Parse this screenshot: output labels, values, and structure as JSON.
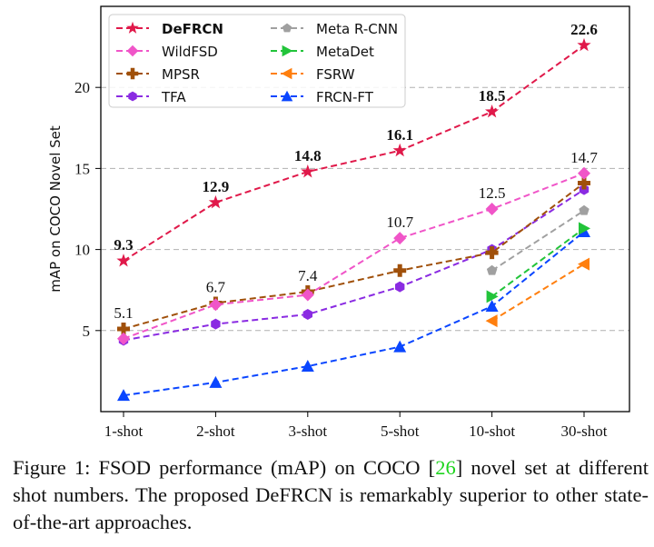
{
  "chart_data": {
    "type": "line",
    "ylabel": "mAP on COCO Novel Set",
    "xlabel": "",
    "categories": [
      "1-shot",
      "2-shot",
      "3-shot",
      "5-shot",
      "10-shot",
      "30-shot"
    ],
    "yticks": [
      5,
      10,
      15,
      20
    ],
    "ylim": [
      0,
      25
    ],
    "grid": "horizontal dashed",
    "legend_position": "top-left",
    "series": [
      {
        "name": "DeFRCN",
        "color": "#e0194a",
        "marker": "star",
        "values": [
          9.3,
          12.9,
          14.8,
          16.1,
          18.5,
          22.6
        ],
        "labels": [
          "9.3",
          "12.9",
          "14.8",
          "16.1",
          "18.5",
          "22.6"
        ],
        "bold": true
      },
      {
        "name": "WildFSD",
        "color": "#f055c8",
        "marker": "diamond",
        "values": [
          4.5,
          6.6,
          7.2,
          10.7,
          12.5,
          14.7
        ],
        "labels": [
          null,
          null,
          null,
          "10.7",
          "12.5",
          "14.7"
        ]
      },
      {
        "name": "MPSR",
        "color": "#a0500a",
        "marker": "plus",
        "values": [
          5.1,
          6.7,
          7.4,
          8.7,
          9.8,
          14.1
        ],
        "labels": [
          "5.1",
          "6.7",
          "7.4",
          null,
          null,
          null
        ]
      },
      {
        "name": "TFA",
        "color": "#8a2be2",
        "marker": "hexagon",
        "values": [
          4.4,
          5.4,
          6.0,
          7.7,
          10.0,
          13.7
        ]
      },
      {
        "name": "Meta R-CNN",
        "color": "#a0a0a0",
        "marker": "pentagon",
        "values": [
          null,
          null,
          null,
          null,
          8.7,
          12.4
        ]
      },
      {
        "name": "MetaDet",
        "color": "#22c43a",
        "marker": "triangle-right",
        "values": [
          null,
          null,
          null,
          null,
          7.1,
          11.3
        ]
      },
      {
        "name": "FSRW",
        "color": "#ff7f0e",
        "marker": "triangle-left",
        "values": [
          null,
          null,
          null,
          null,
          5.6,
          9.1
        ]
      },
      {
        "name": "FRCN-FT",
        "color": "#0a46ff",
        "marker": "triangle-up",
        "values": [
          1.0,
          1.8,
          2.8,
          4.0,
          6.5,
          11.1
        ]
      }
    ]
  },
  "caption": {
    "prefix": "Figure 1: FSOD performance (mAP) on COCO [",
    "citation": "26",
    "suffix": "] novel set at different shot numbers. The proposed DeFRCN is remarkably superior to other state-of-the-art approaches."
  }
}
